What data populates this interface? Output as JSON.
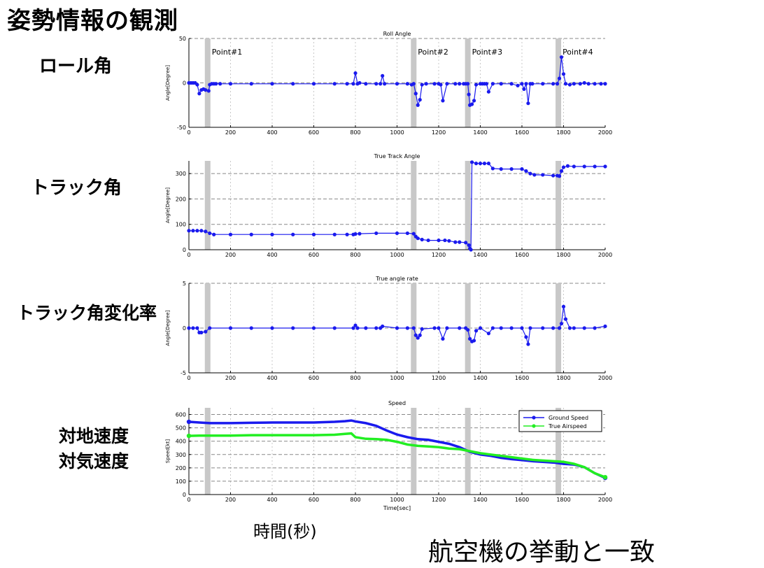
{
  "slide": {
    "title": "姿勢情報の観測",
    "label_roll": "ロール角",
    "label_track": "トラック角",
    "label_rate": "トラック角変化率",
    "label_gs": "対地速度",
    "label_tas": "対気速度",
    "label_time": "時間(秒)",
    "label_match": "航空機の挙動と一致"
  },
  "colors": {
    "series1": "#1a1aee",
    "series2": "#22ee22",
    "band": "#c8c8c8"
  },
  "points": [
    {
      "label": "Point#1",
      "x": 90
    },
    {
      "label": "Point#2",
      "x": 1080
    },
    {
      "label": "Point#3",
      "x": 1340
    },
    {
      "label": "Point#4",
      "x": 1775
    }
  ],
  "chart_data": [
    {
      "type": "line",
      "title": "Roll Angle",
      "xlabel": "",
      "ylabel": "Angle[Degree]",
      "xlim": [
        0,
        2000
      ],
      "ylim": [
        -50,
        50
      ],
      "xticks": [
        0,
        200,
        400,
        600,
        800,
        1000,
        1200,
        1400,
        1600,
        1800,
        2000
      ],
      "yticks": [
        -50,
        0,
        50
      ],
      "show_points": true,
      "series": [
        {
          "name": "Roll Angle",
          "x": [
            0,
            10,
            20,
            30,
            40,
            50,
            60,
            70,
            80,
            95,
            100,
            110,
            120,
            130,
            150,
            200,
            300,
            400,
            500,
            600,
            700,
            760,
            790,
            800,
            810,
            820,
            850,
            900,
            920,
            930,
            940,
            1000,
            1050,
            1070,
            1080,
            1090,
            1100,
            1110,
            1120,
            1140,
            1180,
            1200,
            1210,
            1220,
            1240,
            1280,
            1300,
            1320,
            1330,
            1340,
            1345,
            1350,
            1360,
            1370,
            1380,
            1400,
            1410,
            1420,
            1430,
            1440,
            1460,
            1500,
            1550,
            1580,
            1600,
            1610,
            1620,
            1630,
            1640,
            1650,
            1700,
            1750,
            1770,
            1780,
            1790,
            1800,
            1810,
            1830,
            1850,
            1880,
            1900,
            1920,
            1950,
            1980,
            2000
          ],
          "y": [
            0,
            0,
            0,
            0,
            -2,
            -12,
            -8,
            -7,
            -8,
            -9,
            -2,
            -1,
            -1,
            -1,
            -1,
            -1,
            -1,
            -1,
            -1,
            -1,
            -1,
            -1,
            -1,
            11,
            -1,
            0,
            -1,
            -1,
            -1,
            8,
            -1,
            -1,
            -1,
            -2,
            -1,
            -12,
            -25,
            -19,
            -2,
            -1,
            -1,
            -1,
            -2,
            -20,
            -1,
            -1,
            -1,
            -1,
            -1,
            -1,
            -13,
            -25,
            -24,
            -20,
            -2,
            -1,
            -1,
            -1,
            -1,
            -10,
            -1,
            -1,
            -1,
            -3,
            -1,
            -7,
            -1,
            -23,
            -1,
            -1,
            -1,
            -1,
            -1,
            5,
            29,
            10,
            -1,
            -2,
            -1,
            -1,
            0,
            -1,
            -1,
            -1,
            -1
          ]
        }
      ]
    },
    {
      "type": "line",
      "title": "True Track Angle",
      "xlabel": "",
      "ylabel": "Angle[Degree]",
      "xlim": [
        0,
        2000
      ],
      "ylim": [
        0,
        350
      ],
      "xticks": [
        0,
        200,
        400,
        600,
        800,
        1000,
        1200,
        1400,
        1600,
        1800,
        2000
      ],
      "yticks": [
        0,
        100,
        200,
        300
      ],
      "show_points": true,
      "series": [
        {
          "name": "True Track Angle",
          "x": [
            0,
            20,
            40,
            60,
            80,
            100,
            120,
            200,
            300,
            400,
            500,
            600,
            700,
            760,
            790,
            800,
            820,
            900,
            1000,
            1050,
            1080,
            1090,
            1100,
            1120,
            1150,
            1200,
            1230,
            1250,
            1280,
            1300,
            1330,
            1345,
            1350,
            1355,
            1360,
            1380,
            1400,
            1420,
            1440,
            1460,
            1500,
            1550,
            1600,
            1620,
            1640,
            1660,
            1700,
            1750,
            1770,
            1780,
            1790,
            1800,
            1820,
            1850,
            1900,
            1950,
            2000
          ],
          "y": [
            75,
            75,
            75,
            75,
            72,
            65,
            60,
            60,
            60,
            60,
            60,
            60,
            60,
            60,
            60,
            62,
            63,
            65,
            65,
            65,
            63,
            52,
            45,
            40,
            37,
            37,
            37,
            35,
            30,
            30,
            28,
            18,
            5,
            0,
            345,
            340,
            340,
            340,
            340,
            320,
            318,
            318,
            318,
            310,
            300,
            295,
            295,
            292,
            292,
            290,
            310,
            325,
            330,
            328,
            328,
            328,
            328
          ]
        }
      ]
    },
    {
      "type": "line",
      "title": "True angle rate",
      "xlabel": "",
      "ylabel": "Angle[Degree]",
      "xlim": [
        0,
        2000
      ],
      "ylim": [
        -5,
        5
      ],
      "xticks": [
        0,
        200,
        400,
        600,
        800,
        1000,
        1200,
        1400,
        1600,
        1800,
        2000
      ],
      "yticks": [
        -5,
        0,
        5
      ],
      "show_points": true,
      "series": [
        {
          "name": "True angle rate",
          "x": [
            0,
            20,
            40,
            50,
            60,
            80,
            100,
            200,
            300,
            400,
            500,
            600,
            700,
            790,
            800,
            810,
            850,
            900,
            920,
            930,
            1000,
            1050,
            1080,
            1090,
            1100,
            1110,
            1120,
            1180,
            1200,
            1220,
            1240,
            1300,
            1330,
            1340,
            1350,
            1360,
            1370,
            1380,
            1400,
            1440,
            1460,
            1500,
            1550,
            1600,
            1620,
            1630,
            1640,
            1700,
            1750,
            1780,
            1790,
            1800,
            1810,
            1830,
            1850,
            1900,
            1950,
            2000
          ],
          "y": [
            0,
            0,
            0,
            -0.5,
            -0.5,
            -0.4,
            0,
            0,
            0,
            0,
            0,
            0,
            0,
            0,
            0.3,
            0,
            0,
            0,
            0,
            0.2,
            0,
            0,
            0,
            -0.8,
            -1.1,
            -0.8,
            -0.1,
            0,
            0,
            -1.2,
            0,
            0,
            0,
            -0.2,
            -1.2,
            -1.5,
            -1.4,
            -0.3,
            0,
            -0.6,
            0,
            0,
            0,
            0,
            -1,
            -1.8,
            0,
            0,
            0,
            0,
            0.5,
            2.4,
            1,
            0,
            0,
            0,
            0,
            0.2
          ]
        }
      ]
    },
    {
      "type": "line",
      "title": "Speed",
      "xlabel": "Time[sec]",
      "ylabel": "Speed[kt]",
      "xlim": [
        0,
        2000
      ],
      "ylim": [
        0,
        650
      ],
      "xticks": [
        0,
        200,
        400,
        600,
        800,
        1000,
        1200,
        1400,
        1600,
        1800,
        2000
      ],
      "yticks": [
        0,
        100,
        200,
        300,
        400,
        500,
        600
      ],
      "show_points": false,
      "legend": "top-right",
      "series": [
        {
          "name": "Ground Speed",
          "x": [
            0,
            50,
            100,
            150,
            200,
            300,
            400,
            500,
            600,
            700,
            750,
            780,
            800,
            850,
            900,
            950,
            1000,
            1050,
            1100,
            1150,
            1200,
            1250,
            1300,
            1350,
            1400,
            1450,
            1500,
            1550,
            1600,
            1650,
            1700,
            1750,
            1800,
            1850,
            1900,
            1950,
            2000
          ],
          "y": [
            545,
            540,
            535,
            535,
            535,
            538,
            540,
            540,
            540,
            545,
            550,
            555,
            548,
            535,
            515,
            480,
            450,
            430,
            415,
            410,
            395,
            380,
            355,
            320,
            300,
            290,
            275,
            265,
            258,
            250,
            245,
            240,
            230,
            225,
            205,
            160,
            125
          ]
        },
        {
          "name": "True Airspeed",
          "x": [
            0,
            50,
            100,
            150,
            200,
            300,
            400,
            500,
            600,
            700,
            750,
            780,
            800,
            850,
            900,
            950,
            1000,
            1050,
            1100,
            1150,
            1200,
            1250,
            1300,
            1350,
            1400,
            1450,
            1500,
            1550,
            1600,
            1650,
            1700,
            1750,
            1800,
            1850,
            1900,
            1950,
            2000
          ],
          "y": [
            440,
            442,
            442,
            442,
            442,
            445,
            445,
            445,
            445,
            448,
            455,
            458,
            430,
            418,
            415,
            410,
            395,
            375,
            365,
            360,
            355,
            345,
            340,
            325,
            310,
            300,
            290,
            280,
            270,
            260,
            255,
            250,
            245,
            230,
            205,
            160,
            130
          ]
        }
      ]
    }
  ]
}
